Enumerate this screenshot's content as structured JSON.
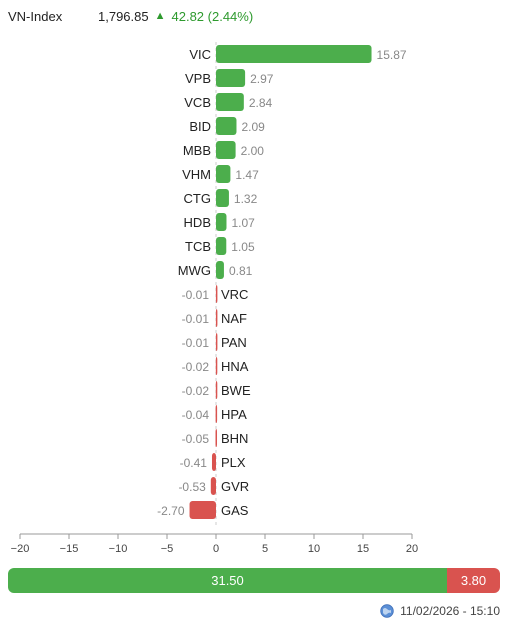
{
  "header": {
    "index_name": "VN-Index",
    "price": "1,796.85",
    "arrow": "▲",
    "change": "42.82 (2.44%)"
  },
  "colors": {
    "positive": "#4cae4c",
    "negative": "#d9534f",
    "value_text": "#888888",
    "header_up": "#2e9a2e"
  },
  "chart_data": {
    "type": "bar",
    "orientation": "horizontal",
    "categories": [
      "VIC",
      "VPB",
      "VCB",
      "BID",
      "MBB",
      "VHM",
      "CTG",
      "HDB",
      "TCB",
      "MWG",
      "VRC",
      "NAF",
      "PAN",
      "HNA",
      "BWE",
      "HPA",
      "BHN",
      "PLX",
      "GVR",
      "GAS"
    ],
    "values": [
      15.87,
      2.97,
      2.84,
      2.09,
      2.0,
      1.47,
      1.32,
      1.07,
      1.05,
      0.81,
      -0.01,
      -0.01,
      -0.01,
      -0.02,
      -0.02,
      -0.04,
      -0.05,
      -0.41,
      -0.53,
      -2.7
    ],
    "value_labels": [
      "15.87",
      "2.97",
      "2.84",
      "2.09",
      "2.00",
      "1.47",
      "1.32",
      "1.07",
      "1.05",
      "0.81",
      "-0.01",
      "-0.01",
      "-0.01",
      "-0.02",
      "-0.02",
      "-0.04",
      "-0.05",
      "-0.41",
      "-0.53",
      "-2.70"
    ],
    "xlim": [
      -20,
      20
    ],
    "xticks": [
      -20,
      -15,
      -10,
      -5,
      0,
      5,
      10,
      15,
      20
    ],
    "xtick_labels": [
      "−20",
      "−15",
      "−10",
      "−5",
      "0",
      "5",
      "10",
      "15",
      "20"
    ]
  },
  "summary": {
    "positive_total": 31.5,
    "positive_label": "31.50",
    "negative_total": 3.8,
    "negative_label": "3.80"
  },
  "footer": {
    "timestamp": "11/02/2026 - 15:10",
    "icon": "clock-globe-icon"
  }
}
